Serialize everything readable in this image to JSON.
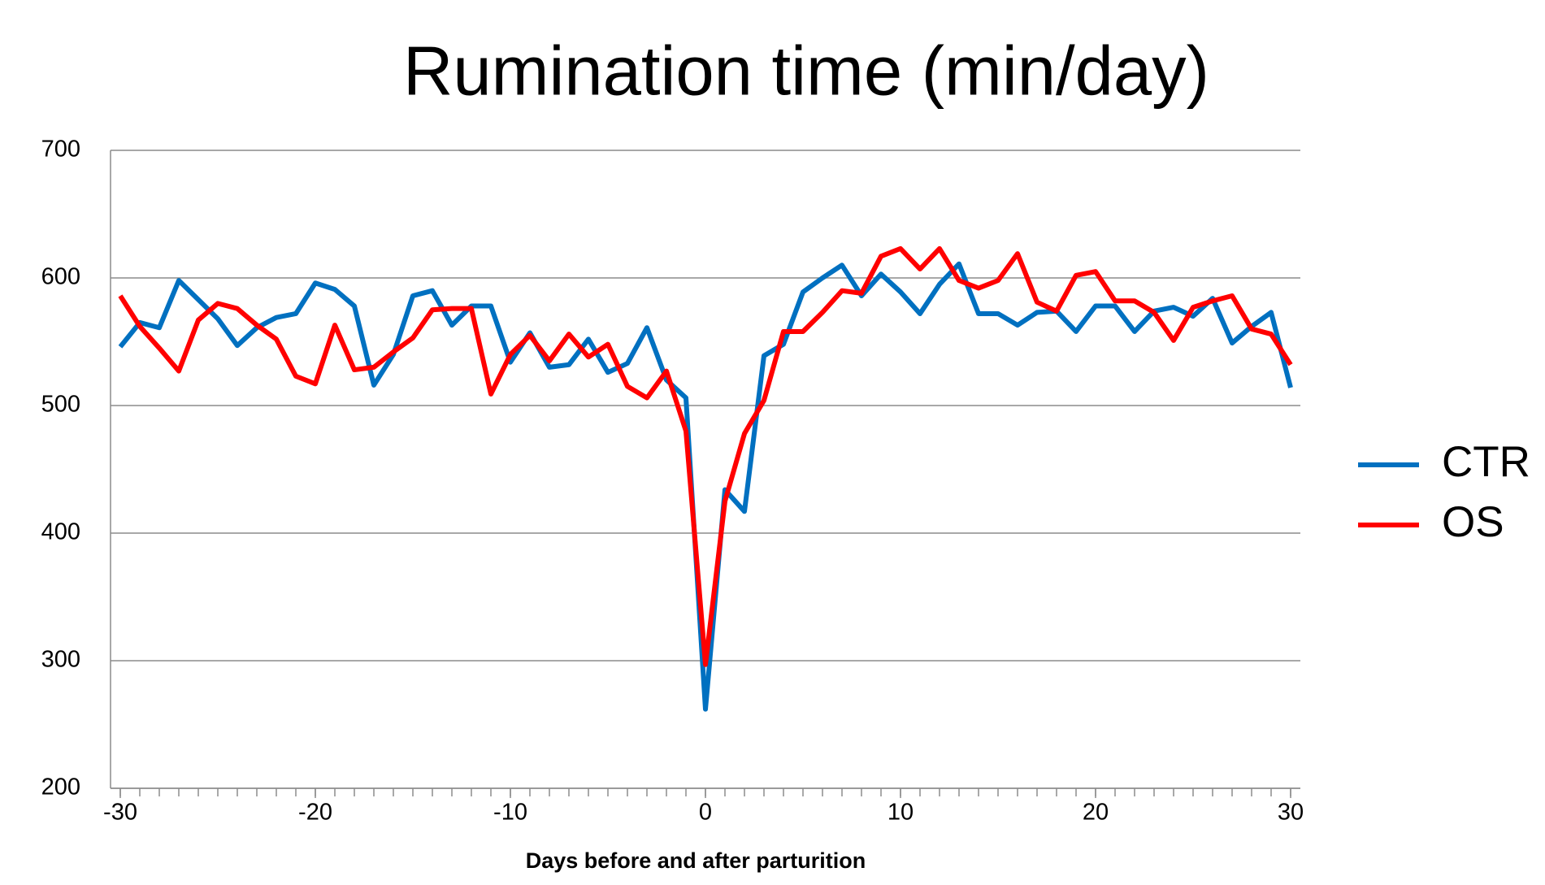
{
  "chart_data": {
    "type": "line",
    "title": "Rumination time (min/day)",
    "x_label": "Days before and after parturition",
    "x": [
      -30,
      -29,
      -28,
      -27,
      -26,
      -25,
      -24,
      -23,
      -22,
      -21,
      -20,
      -19,
      -18,
      -17,
      -16,
      -15,
      -14,
      -13,
      -12,
      -11,
      -10,
      -9,
      -8,
      -7,
      -6,
      -5,
      -4,
      -3,
      -2,
      -1,
      0,
      1,
      2,
      3,
      4,
      5,
      6,
      7,
      8,
      9,
      10,
      11,
      12,
      13,
      14,
      15,
      16,
      17,
      18,
      19,
      20,
      21,
      22,
      23,
      24,
      25,
      26,
      27,
      28,
      29,
      30
    ],
    "series": [
      {
        "name": "CTR",
        "color": "#0070c0",
        "values": [
          546,
          565,
          561,
          598,
          583,
          568,
          547,
          561,
          569,
          572,
          596,
          591,
          578,
          516,
          540,
          586,
          590,
          563,
          578,
          578,
          534,
          557,
          530,
          532,
          552,
          526,
          533,
          561,
          520,
          506,
          262,
          434,
          417,
          539,
          548,
          589,
          600,
          610,
          586,
          603,
          589,
          572,
          595,
          611,
          572,
          572,
          563,
          573,
          574,
          558,
          578,
          578,
          558,
          574,
          577,
          570,
          584,
          549,
          562,
          573,
          514
        ]
      },
      {
        "name": "OS",
        "color": "#ff0000",
        "values": [
          586,
          562,
          545,
          527,
          567,
          580,
          576,
          563,
          552,
          523,
          517,
          563,
          528,
          530,
          542,
          553,
          575,
          576,
          576,
          509,
          540,
          555,
          535,
          556,
          538,
          548,
          515,
          506,
          527,
          480,
          297,
          425,
          478,
          504,
          558,
          558,
          573,
          590,
          588,
          617,
          623,
          607,
          623,
          598,
          592,
          598,
          619,
          581,
          574,
          602,
          605,
          582,
          582,
          573,
          551,
          577,
          582,
          586,
          560,
          556,
          532
        ]
      }
    ],
    "xlim": [
      -30.5,
      30.5
    ],
    "xticks": [
      -30,
      -20,
      -10,
      0,
      10,
      20,
      30
    ],
    "ylim": [
      200,
      700
    ],
    "yticks": [
      200,
      300,
      400,
      500,
      600,
      700
    ],
    "grid": true,
    "legend": "right"
  }
}
